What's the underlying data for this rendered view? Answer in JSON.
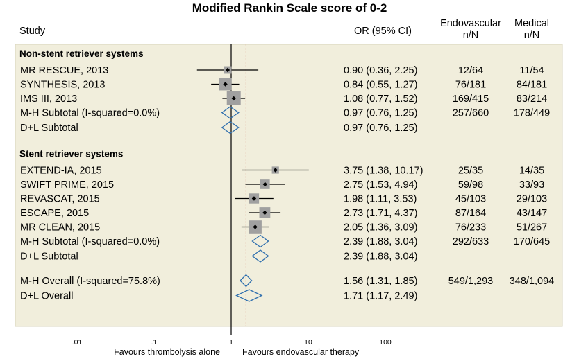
{
  "title": "Modified Rankin Scale score of 0-2",
  "headers": {
    "study": "Study",
    "or": "OR (95% CI)",
    "endo_line1": "Endovascular",
    "endo_line2": "n/N",
    "medical_line1": "Medical",
    "medical_line2": "n/N"
  },
  "colors": {
    "panel": "#f1eedc",
    "box": "#a0a0a0",
    "diamond": "#2f6fae",
    "refline": "#000000",
    "overall_line": "#c0392b"
  },
  "chart_data": {
    "type": "forest",
    "scale": "log",
    "xticks": [
      0.01,
      0.1,
      1,
      10,
      100
    ],
    "xtick_labels": [
      ".01",
      ".1",
      "1",
      "10",
      "100"
    ],
    "null_value": 1,
    "overall_dashed_line_value": 1.56,
    "xlabel_left": "Favours thrombolysis alone",
    "xlabel_right": "Favours endovascular therapy",
    "groups": [
      {
        "name": "Non-stent retriever systems",
        "studies": [
          {
            "label": "MR RESCUE, 2013",
            "or": 0.9,
            "lo": 0.36,
            "hi": 2.25,
            "or_text": "0.90 (0.36, 2.25)",
            "endo": "12/64",
            "med": "11/54",
            "weight": 0.35
          },
          {
            "label": "SYNTHESIS, 2013",
            "or": 0.84,
            "lo": 0.55,
            "hi": 1.27,
            "or_text": "0.84 (0.55, 1.27)",
            "endo": "76/181",
            "med": "84/181",
            "weight": 0.85
          },
          {
            "label": "IMS III, 2013",
            "or": 1.08,
            "lo": 0.77,
            "hi": 1.52,
            "or_text": "1.08 (0.77, 1.52)",
            "endo": "169/415",
            "med": "83/214",
            "weight": 1.0
          }
        ],
        "subtotals": [
          {
            "label": "M-H Subtotal (I-squared=0.0%)",
            "or": 0.97,
            "lo": 0.76,
            "hi": 1.25,
            "or_text": "0.97 (0.76, 1.25)",
            "endo": "257/660",
            "med": "178/449"
          },
          {
            "label": "D+L Subtotal",
            "or": 0.97,
            "lo": 0.76,
            "hi": 1.25,
            "or_text": "0.97 (0.76, 1.25)",
            "endo": "",
            "med": ""
          }
        ]
      },
      {
        "name": "Stent retriever systems",
        "studies": [
          {
            "label": "EXTEND-IA, 2015",
            "or": 3.75,
            "lo": 1.38,
            "hi": 10.17,
            "or_text": "3.75 (1.38, 10.17)",
            "endo": "25/35",
            "med": "14/35",
            "weight": 0.3
          },
          {
            "label": "SWIFT PRIME, 2015",
            "or": 2.75,
            "lo": 1.53,
            "hi": 4.94,
            "or_text": "2.75 (1.53, 4.94)",
            "endo": "59/98",
            "med": "33/93",
            "weight": 0.55
          },
          {
            "label": "REVASCAT, 2015",
            "or": 1.98,
            "lo": 1.11,
            "hi": 3.53,
            "or_text": "1.98 (1.11, 3.53)",
            "endo": "45/103",
            "med": "29/103",
            "weight": 0.6
          },
          {
            "label": "ESCAPE, 2015",
            "or": 2.73,
            "lo": 1.71,
            "hi": 4.37,
            "or_text": "2.73 (1.71, 4.37)",
            "endo": "87/164",
            "med": "43/147",
            "weight": 0.7
          },
          {
            "label": "MR CLEAN, 2015",
            "or": 2.05,
            "lo": 1.36,
            "hi": 3.09,
            "or_text": "2.05 (1.36, 3.09)",
            "endo": "76/233",
            "med": "51/267",
            "weight": 0.9
          }
        ],
        "subtotals": [
          {
            "label": "M-H Subtotal (I-squared=0.0%)",
            "or": 2.39,
            "lo": 1.88,
            "hi": 3.04,
            "or_text": "2.39 (1.88, 3.04)",
            "endo": "292/633",
            "med": "170/645"
          },
          {
            "label": "D+L Subtotal",
            "or": 2.39,
            "lo": 1.88,
            "hi": 3.04,
            "or_text": "2.39 (1.88, 3.04)",
            "endo": "",
            "med": ""
          }
        ]
      }
    ],
    "overall": [
      {
        "label": "M-H Overall (I-squared=75.8%)",
        "or": 1.56,
        "lo": 1.31,
        "hi": 1.85,
        "or_text": "1.56 (1.31, 1.85)",
        "endo": "549/1,293",
        "med": "348/1,094"
      },
      {
        "label": "D+L Overall",
        "or": 1.71,
        "lo": 1.17,
        "hi": 2.49,
        "or_text": "1.71 (1.17, 2.49)",
        "endo": "",
        "med": ""
      }
    ]
  }
}
